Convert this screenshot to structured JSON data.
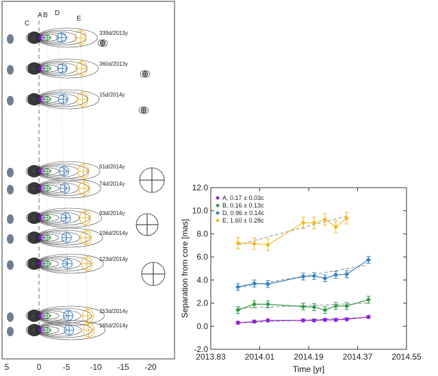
{
  "map": {
    "component_labels": [
      "C",
      "A",
      "B",
      "D",
      "E"
    ],
    "epochs": [
      "339d/2013y",
      "360d/2013y",
      "15d/2014y",
      "61d/2014y",
      "74d/2014y",
      "93d/2014y",
      "106d/2014y",
      "123d/2014y",
      "153d/2014y",
      "165d/2014y"
    ],
    "axis_ticks": [
      5,
      0,
      -5,
      -10,
      -15,
      -20
    ],
    "colors": {
      "A": "#8b1fd6",
      "B": "#2e9a44",
      "D": "#2f7fc1",
      "E": "#f2b81c",
      "contour": "#333333",
      "beam": "#6f7e8f"
    }
  },
  "chart_data": {
    "type": "line",
    "xlabel": "Time [yr]",
    "ylabel": "Separation from core [mas]",
    "xlim": [
      2013.83,
      2014.55
    ],
    "ylim": [
      -2.0,
      12.0
    ],
    "xticks": [
      "2013.83",
      "2014.01",
      "2014.19",
      "2014.37",
      "2014.55"
    ],
    "yticks": [
      "-2.0",
      "0.0",
      "2.0",
      "4.0",
      "6.0",
      "8.0",
      "10.0",
      "12.0"
    ],
    "legend_position": "top-left",
    "series": [
      {
        "name": "A,  0.17 ± 0.03c",
        "color": "#8b1fd6",
        "x": [
          2013.93,
          2013.99,
          2014.04,
          2014.17,
          2014.21,
          2014.25,
          2014.29,
          2014.33,
          2014.41
        ],
        "y": [
          0.3,
          0.4,
          0.5,
          0.5,
          0.5,
          0.55,
          0.55,
          0.6,
          0.8
        ],
        "err": [
          0.12,
          0.12,
          0.12,
          0.12,
          0.12,
          0.12,
          0.12,
          0.12,
          0.12
        ],
        "fit": [
          0.28,
          0.78
        ]
      },
      {
        "name": "B,  0.16 ± 0.13c",
        "color": "#2e9a44",
        "x": [
          2013.93,
          2013.99,
          2014.04,
          2014.17,
          2014.21,
          2014.25,
          2014.29,
          2014.33,
          2014.41
        ],
        "y": [
          1.4,
          1.9,
          1.9,
          1.7,
          1.65,
          1.4,
          1.75,
          1.75,
          2.3
        ],
        "err": [
          0.3,
          0.3,
          0.3,
          0.3,
          0.3,
          0.3,
          0.3,
          0.3,
          0.3
        ],
        "fit": [
          1.55,
          2.0
        ]
      },
      {
        "name": "D,  0.96 ± 0.14c",
        "color": "#2f7fc1",
        "x": [
          2013.93,
          2013.99,
          2014.04,
          2014.17,
          2014.21,
          2014.25,
          2014.29,
          2014.33,
          2014.41
        ],
        "y": [
          3.4,
          3.7,
          3.65,
          4.3,
          4.35,
          4.15,
          4.45,
          4.5,
          5.75
        ],
        "err": [
          0.3,
          0.3,
          0.3,
          0.3,
          0.3,
          0.3,
          0.3,
          0.3,
          0.3
        ],
        "fit": [
          3.35,
          5.3
        ]
      },
      {
        "name": "E,  1.60 ± 0.28c",
        "color": "#f2b81c",
        "x": [
          2013.93,
          2013.99,
          2014.04,
          2014.17,
          2014.21,
          2014.25,
          2014.29,
          2014.33
        ],
        "y": [
          7.2,
          7.15,
          7.05,
          8.95,
          8.95,
          9.25,
          8.6,
          9.35
        ],
        "err": [
          0.5,
          0.5,
          0.5,
          0.5,
          0.5,
          0.5,
          0.5,
          0.5
        ],
        "fit": [
          7.05,
          9.55
        ]
      }
    ]
  }
}
